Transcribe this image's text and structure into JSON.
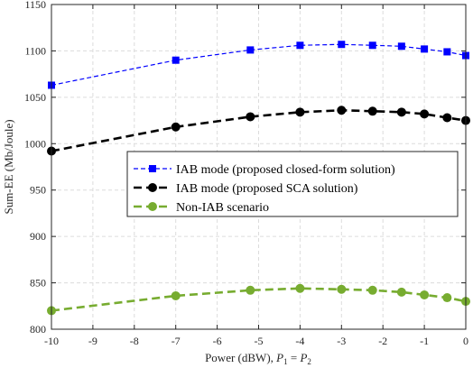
{
  "chart_data": {
    "type": "line",
    "xlabel_prefix": "Power (dBW), ",
    "xlabel_math_a": "P",
    "xlabel_sub_a": "1",
    "xlabel_eq": " = ",
    "xlabel_math_b": "P",
    "xlabel_sub_b": "2",
    "ylabel": "Sum-EE (Mb/Joule)",
    "xlim": [
      -10,
      0
    ],
    "ylim": [
      800,
      1150
    ],
    "xticks": [
      -10,
      -9,
      -8,
      -7,
      -6,
      -5,
      -4,
      -3,
      -2,
      -1,
      0
    ],
    "yticks": [
      800,
      850,
      900,
      950,
      1000,
      1050,
      1100,
      1150
    ],
    "grid": true,
    "legend_position": "center-right",
    "series": [
      {
        "name": "IAB mode (proposed closed-form solution)",
        "color": "#0000ff",
        "marker": "square",
        "line_style": "dashed-thin",
        "x": [
          -10,
          -7,
          -5.2,
          -4,
          -3,
          -2.25,
          -1.55,
          -1,
          -0.45,
          0
        ],
        "y": [
          1063,
          1090,
          1101,
          1106,
          1107,
          1106,
          1105,
          1102,
          1099,
          1095
        ]
      },
      {
        "name": "IAB mode (proposed SCA solution)",
        "color": "#000000",
        "marker": "circle",
        "line_style": "dashed-thick",
        "x": [
          -10,
          -7,
          -5.2,
          -4,
          -3,
          -2.25,
          -1.55,
          -1,
          -0.45,
          0
        ],
        "y": [
          992,
          1018,
          1029,
          1034,
          1036,
          1035,
          1034,
          1032,
          1028,
          1025
        ]
      },
      {
        "name": "Non-IAB scenario",
        "color": "#77ac30",
        "marker": "circle",
        "line_style": "dashed-thick",
        "x": [
          -10,
          -7,
          -5.2,
          -4,
          -3,
          -2.25,
          -1.55,
          -1,
          -0.45,
          0
        ],
        "y": [
          820,
          836,
          842,
          844,
          843,
          842,
          840,
          837,
          834,
          830
        ]
      }
    ]
  }
}
